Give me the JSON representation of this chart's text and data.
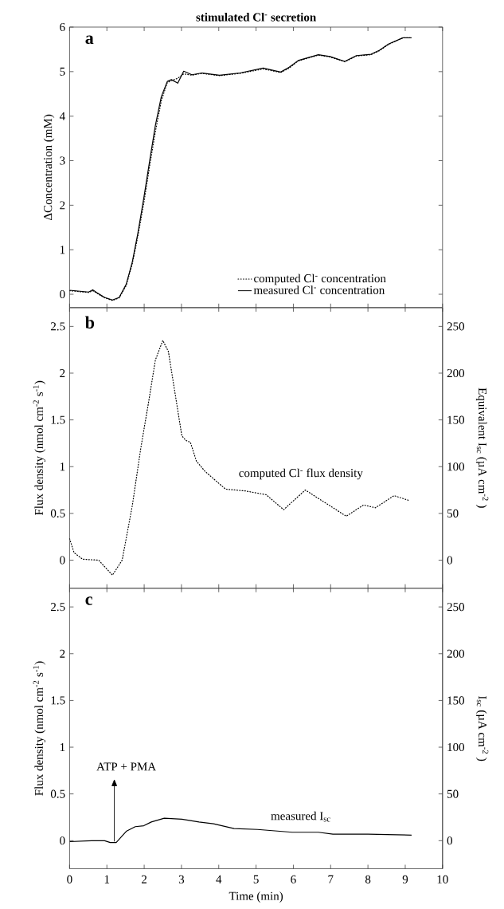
{
  "chart_data": [
    {
      "type": "line",
      "title": "stimulated Cl$^{-}$ secretion",
      "ylabel": "ΔConcentration (mM)",
      "xlim": [
        0,
        10
      ],
      "xticks": [
        0,
        1,
        2,
        3,
        4,
        5,
        6,
        7,
        8,
        9,
        10
      ],
      "ylim": [
        -0.3,
        6
      ],
      "yticks": [
        0,
        1,
        2,
        3,
        4,
        5,
        6
      ],
      "tick_labels": "y",
      "legend": "bottom right",
      "annotations": [
        "a"
      ],
      "series": [
        {
          "name": "computed Cl$^{-}$ concentration",
          "color": "#000000",
          "line_style": "dotted",
          "x": [
            0,
            0.51,
            0.62,
            0.74,
            0.94,
            1.15,
            1.33,
            1.52,
            1.68,
            1.83,
            1.99,
            2.15,
            2.3,
            2.46,
            2.62,
            2.73,
            2.9,
            3.06,
            3.28,
            3.55,
            4.02,
            4.57,
            5.19,
            5.66,
            5.89,
            6.13,
            6.67,
            6.98,
            7.38,
            7.69,
            8.08,
            8.31,
            8.55,
            8.94,
            9.17
          ],
          "values": [
            0.08,
            0.04,
            0.08,
            0.02,
            -0.08,
            -0.14,
            -0.08,
            0.2,
            0.68,
            1.3,
            2.05,
            2.9,
            3.65,
            4.35,
            4.75,
            4.8,
            4.85,
            4.95,
            4.92,
            4.96,
            4.91,
            4.96,
            5.06,
            4.98,
            5.08,
            5.24,
            5.37,
            5.33,
            5.22,
            5.35,
            5.38,
            5.47,
            5.61,
            5.76,
            5.76
          ]
        },
        {
          "name": "measured Cl$^{-}$ concentration",
          "color": "#000000",
          "line_style": "solid",
          "x": [
            0,
            0.51,
            0.62,
            0.74,
            0.94,
            1.15,
            1.33,
            1.52,
            1.68,
            1.83,
            1.99,
            2.15,
            2.3,
            2.46,
            2.62,
            2.73,
            2.9,
            3.06,
            3.28,
            3.55,
            4.02,
            4.57,
            5.19,
            5.66,
            5.89,
            6.13,
            6.67,
            6.98,
            7.38,
            7.69,
            8.08,
            8.31,
            8.55,
            8.94,
            9.17
          ],
          "values": [
            0.09,
            0.05,
            0.1,
            0.03,
            -0.07,
            -0.13,
            -0.07,
            0.23,
            0.72,
            1.37,
            2.16,
            3.01,
            3.79,
            4.44,
            4.78,
            4.82,
            4.74,
            5.01,
            4.93,
            4.97,
            4.92,
            4.97,
            5.08,
            4.99,
            5.1,
            5.25,
            5.38,
            5.34,
            5.23,
            5.36,
            5.39,
            5.48,
            5.62,
            5.76,
            5.76
          ]
        }
      ]
    },
    {
      "type": "line",
      "ylabel": "Flux density (nmol cm$^{-2}$ s$^{-1}$)",
      "y2label": "Equivalent I$_{sc}$ (µA cm$^{-2}$ )",
      "xlim": [
        0,
        10
      ],
      "xticks": [
        0,
        1,
        2,
        3,
        4,
        5,
        6,
        7,
        8,
        9,
        10
      ],
      "ylim": [
        -0.3,
        2.7
      ],
      "yticks": [
        0,
        0.5,
        1,
        1.5,
        2,
        2.5
      ],
      "y2lim": [
        -30,
        270
      ],
      "y2ticks": [
        0,
        50,
        100,
        150,
        200,
        250
      ],
      "tick_labels": "y",
      "annotations": [
        "b"
      ],
      "series": [
        {
          "name": "computed Cl$^{-}$ flux density",
          "color": "#000000",
          "line_style": "dotted",
          "x": [
            0,
            0.12,
            0.35,
            0.78,
            0.94,
            1.15,
            1.41,
            1.68,
            1.91,
            2.11,
            2.3,
            2.5,
            2.65,
            2.81,
            3.01,
            3.12,
            3.24,
            3.4,
            3.63,
            4.18,
            4.72,
            5.27,
            5.74,
            6.32,
            7.42,
            7.88,
            8.2,
            8.7,
            9.09
          ],
          "values": [
            0.23,
            0.08,
            0.01,
            0.0,
            -0.07,
            -0.16,
            0.0,
            0.58,
            1.2,
            1.67,
            2.14,
            2.35,
            2.23,
            1.83,
            1.33,
            1.28,
            1.26,
            1.06,
            0.95,
            0.76,
            0.74,
            0.7,
            0.54,
            0.75,
            0.47,
            0.59,
            0.56,
            0.69,
            0.64
          ]
        }
      ]
    },
    {
      "type": "line",
      "xlabel": "Time (min)",
      "ylabel": "Flux density (nmol cm$^{-2}$ s$^{-1}$)",
      "y2label": "I$_{sc}$ (µA cm$^{-2}$ )",
      "xlim": [
        0,
        10
      ],
      "xticks": [
        0,
        1,
        2,
        3,
        4,
        5,
        6,
        7,
        8,
        9,
        10
      ],
      "ylim": [
        -0.3,
        2.7
      ],
      "yticks": [
        0,
        0.5,
        1,
        1.5,
        2,
        2.5
      ],
      "y2lim": [
        -30,
        270
      ],
      "y2ticks": [
        0,
        50,
        100,
        150,
        200,
        250
      ],
      "annotations": [
        "c",
        "ATP + PMA"
      ],
      "series": [
        {
          "name": "measured I$_{sc}$",
          "color": "#000000",
          "line_style": "solid",
          "axis": "y2",
          "x": [
            0,
            0.59,
            0.94,
            1.09,
            1.25,
            1.52,
            1.76,
            1.99,
            2.19,
            2.54,
            3.01,
            3.47,
            3.86,
            4.41,
            5.04,
            5.97,
            6.67,
            7.06,
            8.0,
            9.17
          ],
          "values": [
            -1,
            0,
            0,
            -2,
            -2,
            10,
            15,
            16,
            20,
            24,
            23,
            20,
            18,
            13,
            12,
            9,
            9,
            7,
            7,
            6
          ]
        }
      ]
    }
  ]
}
